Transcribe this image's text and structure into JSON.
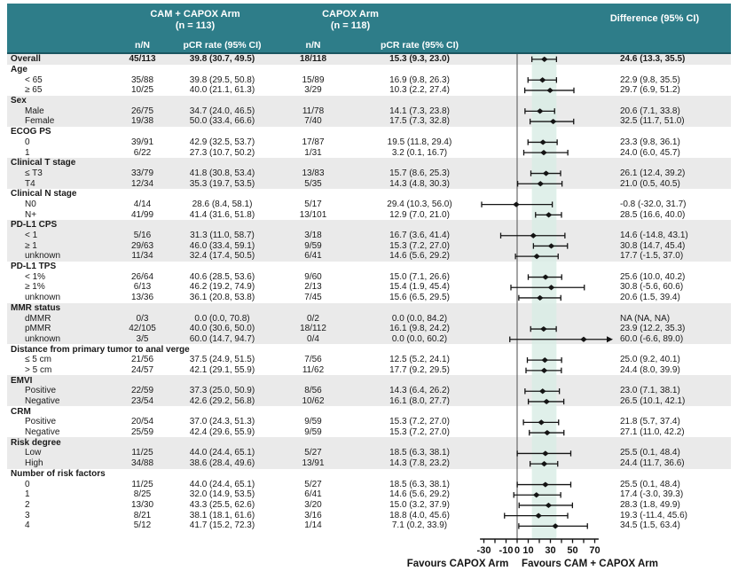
{
  "header": {
    "arm1_title": "CAM + CAPOX Arm",
    "arm1_n": "(n = 113)",
    "arm2_title": "CAPOX Arm",
    "arm2_n": "(n = 118)",
    "diff_title": "Difference (95% CI)",
    "col_nN": "n/N",
    "col_pcr": "pCR rate (95% CI)"
  },
  "colors": {
    "header_bg": "#2e7d89",
    "row_shade": "#eaeaea",
    "band": "#d8ece5",
    "marker": "#141414",
    "reference_line": "#6a6a6a"
  },
  "chart_data": {
    "type": "scatter",
    "subtype": "forest-plot",
    "xlim": [
      -33,
      73
    ],
    "reference_line": 0,
    "shaded_band": [
      13.3,
      35.5
    ],
    "x_ticks": [
      -30,
      -20,
      -10,
      0,
      10,
      20,
      30,
      40,
      50,
      60,
      70
    ],
    "x_tick_labels": [
      {
        "v": -30,
        "label": "-30"
      },
      {
        "v": -10,
        "label": "-10"
      },
      {
        "v": 0,
        "label": "0"
      },
      {
        "v": 10,
        "label": "10"
      },
      {
        "v": 30,
        "label": "30"
      },
      {
        "v": 50,
        "label": "50"
      },
      {
        "v": 70,
        "label": "70"
      }
    ],
    "favours_left": "Favours CAPOX Arm",
    "favours_right": "Favours CAM + CAPOX Arm",
    "rows": [
      {
        "label": "Overall",
        "type": "overall",
        "shaded": true,
        "cam_nN": "45/113",
        "cam_pcr": "39.8 (30.7, 49.5)",
        "cap_nN": "18/118",
        "cap_pcr": "15.3 (9.3, 23.0)",
        "diff": "24.6 (13.3, 35.5)",
        "est": 24.6,
        "lo": 13.3,
        "hi": 35.5
      },
      {
        "label": "Age",
        "type": "group",
        "shaded": false
      },
      {
        "label": "< 65",
        "type": "item",
        "shaded": false,
        "cam_nN": "35/88",
        "cam_pcr": "39.8 (29.5, 50.8)",
        "cap_nN": "15/89",
        "cap_pcr": "16.9 (9.8, 26.3)",
        "diff": "22.9 (9.8, 35.5)",
        "est": 22.9,
        "lo": 9.8,
        "hi": 35.5
      },
      {
        "label": "≥ 65",
        "type": "item",
        "shaded": false,
        "cam_nN": "10/25",
        "cam_pcr": "40.0 (21.1, 61.3)",
        "cap_nN": "3/29",
        "cap_pcr": "10.3 (2.2, 27.4)",
        "diff": "29.7 (6.9, 51.2)",
        "est": 29.7,
        "lo": 6.9,
        "hi": 51.2
      },
      {
        "label": "Sex",
        "type": "group",
        "shaded": true
      },
      {
        "label": "Male",
        "type": "item",
        "shaded": true,
        "cam_nN": "26/75",
        "cam_pcr": "34.7 (24.0, 46.5)",
        "cap_nN": "11/78",
        "cap_pcr": "14.1 (7.3, 23.8)",
        "diff": "20.6 (7.1, 33.8)",
        "est": 20.6,
        "lo": 7.1,
        "hi": 33.8
      },
      {
        "label": "Female",
        "type": "item",
        "shaded": true,
        "cam_nN": "19/38",
        "cam_pcr": "50.0 (33.4, 66.6)",
        "cap_nN": "7/40",
        "cap_pcr": "17.5 (7.3, 32.8)",
        "diff": "32.5 (11.7, 51.0)",
        "est": 32.5,
        "lo": 11.7,
        "hi": 51.0
      },
      {
        "label": "ECOG PS",
        "type": "group",
        "shaded": false
      },
      {
        "label": "0",
        "type": "item",
        "shaded": false,
        "cam_nN": "39/91",
        "cam_pcr": "42.9 (32.5, 53.7)",
        "cap_nN": "17/87",
        "cap_pcr": "19.5 (11.8, 29.4)",
        "diff": "23.3 (9.8, 36.1)",
        "est": 23.3,
        "lo": 9.8,
        "hi": 36.1
      },
      {
        "label": "1",
        "type": "item",
        "shaded": false,
        "cam_nN": "6/22",
        "cam_pcr": "27.3 (10.7, 50.2)",
        "cap_nN": "1/31",
        "cap_pcr": "3.2 (0.1, 16.7)",
        "diff": "24.0 (6.0, 45.7)",
        "est": 24.0,
        "lo": 6.0,
        "hi": 45.7
      },
      {
        "label": "Clinical T stage",
        "type": "group",
        "shaded": true
      },
      {
        "label": "≤ T3",
        "type": "item",
        "shaded": true,
        "cam_nN": "33/79",
        "cam_pcr": "41.8 (30.8, 53.4)",
        "cap_nN": "13/83",
        "cap_pcr": "15.7 (8.6, 25.3)",
        "diff": "26.1 (12.4, 39.2)",
        "est": 26.1,
        "lo": 12.4,
        "hi": 39.2
      },
      {
        "label": "T4",
        "type": "item",
        "shaded": true,
        "cam_nN": "12/34",
        "cam_pcr": "35.3 (19.7, 53.5)",
        "cap_nN": "5/35",
        "cap_pcr": "14.3 (4.8, 30.3)",
        "diff": "21.0 (0.5, 40.5)",
        "est": 21.0,
        "lo": 0.5,
        "hi": 40.5
      },
      {
        "label": "Clinical N stage",
        "type": "group",
        "shaded": false
      },
      {
        "label": "N0",
        "type": "item",
        "shaded": false,
        "cam_nN": "4/14",
        "cam_pcr": "28.6 (8.4, 58.1)",
        "cap_nN": "5/17",
        "cap_pcr": "29.4 (10.3, 56.0)",
        "diff": "-0.8 (-32.0, 31.7)",
        "est": -0.8,
        "lo": -32.0,
        "hi": 31.7
      },
      {
        "label": "N+",
        "type": "item",
        "shaded": false,
        "cam_nN": "41/99",
        "cam_pcr": "41.4 (31.6, 51.8)",
        "cap_nN": "13/101",
        "cap_pcr": "12.9 (7.0, 21.0)",
        "diff": "28.5 (16.6, 40.0)",
        "est": 28.5,
        "lo": 16.6,
        "hi": 40.0
      },
      {
        "label": "PD-L1 CPS",
        "type": "group",
        "shaded": true
      },
      {
        "label": "< 1",
        "type": "item",
        "shaded": true,
        "cam_nN": "5/16",
        "cam_pcr": "31.3 (11.0, 58.7)",
        "cap_nN": "3/18",
        "cap_pcr": "16.7 (3.6, 41.4)",
        "diff": "14.6 (-14.8, 43.1)",
        "est": 14.6,
        "lo": -14.8,
        "hi": 43.1
      },
      {
        "label": "≥ 1",
        "type": "item",
        "shaded": true,
        "cam_nN": "29/63",
        "cam_pcr": "46.0 (33.4, 59.1)",
        "cap_nN": "9/59",
        "cap_pcr": "15.3 (7.2, 27.0)",
        "diff": "30.8 (14.7, 45.4)",
        "est": 30.8,
        "lo": 14.7,
        "hi": 45.4
      },
      {
        "label": "unknown",
        "type": "item",
        "shaded": true,
        "cam_nN": "11/34",
        "cam_pcr": "32.4 (17.4, 50.5)",
        "cap_nN": "6/41",
        "cap_pcr": "14.6 (5.6, 29.2)",
        "diff": "17.7 (-1.5, 37.0)",
        "est": 17.7,
        "lo": -1.5,
        "hi": 37.0
      },
      {
        "label": "PD-L1 TPS",
        "type": "group",
        "shaded": false
      },
      {
        "label": "< 1%",
        "type": "item",
        "shaded": false,
        "cam_nN": "26/64",
        "cam_pcr": "40.6 (28.5, 53.6)",
        "cap_nN": "9/60",
        "cap_pcr": "15.0 (7.1, 26.6)",
        "diff": "25.6 (10.0, 40.2)",
        "est": 25.6,
        "lo": 10.0,
        "hi": 40.2
      },
      {
        "label": "≥ 1%",
        "type": "item",
        "shaded": false,
        "cam_nN": "6/13",
        "cam_pcr": "46.2 (19.2, 74.9)",
        "cap_nN": "2/13",
        "cap_pcr": "15.4 (1.9, 45.4)",
        "diff": "30.8 (-5.6, 60.6)",
        "est": 30.8,
        "lo": -5.6,
        "hi": 60.6
      },
      {
        "label": "unknown",
        "type": "item",
        "shaded": false,
        "cam_nN": "13/36",
        "cam_pcr": "36.1 (20.8, 53.8)",
        "cap_nN": "7/45",
        "cap_pcr": "15.6 (6.5, 29.5)",
        "diff": "20.6 (1.5, 39.4)",
        "est": 20.6,
        "lo": 1.5,
        "hi": 39.4
      },
      {
        "label": "MMR status",
        "type": "group",
        "shaded": true
      },
      {
        "label": "dMMR",
        "type": "item",
        "shaded": true,
        "cam_nN": "0/3",
        "cam_pcr": "0.0 (0.0, 70.8)",
        "cap_nN": "0/2",
        "cap_pcr": "0.0 (0.0, 84.2)",
        "diff": "NA (NA, NA)",
        "na": true
      },
      {
        "label": "pMMR",
        "type": "item",
        "shaded": true,
        "cam_nN": "42/105",
        "cam_pcr": "40.0 (30.6, 50.0)",
        "cap_nN": "18/112",
        "cap_pcr": "16.1 (9.8, 24.2)",
        "diff": "23.9 (12.2, 35.3)",
        "est": 23.9,
        "lo": 12.2,
        "hi": 35.3
      },
      {
        "label": "unknown",
        "type": "item",
        "shaded": true,
        "cam_nN": "3/5",
        "cam_pcr": "60.0 (14.7, 94.7)",
        "cap_nN": "0/4",
        "cap_pcr": "0.0 (0.0, 60.2)",
        "diff": "60.0 (-6.6, 89.0)",
        "est": 60.0,
        "lo": -6.6,
        "hi": 89.0,
        "arrow_hi": true
      },
      {
        "label": "Distance from primary tumor to anal verge",
        "type": "group",
        "shaded": false
      },
      {
        "label": "≤ 5 cm",
        "type": "item",
        "shaded": false,
        "cam_nN": "21/56",
        "cam_pcr": "37.5 (24.9, 51.5)",
        "cap_nN": "7/56",
        "cap_pcr": "12.5 (5.2, 24.1)",
        "diff": "25.0 (9.2, 40.1)",
        "est": 25.0,
        "lo": 9.2,
        "hi": 40.1
      },
      {
        "label": "> 5 cm",
        "type": "item",
        "shaded": false,
        "cam_nN": "24/57",
        "cam_pcr": "42.1 (29.1, 55.9)",
        "cap_nN": "11/62",
        "cap_pcr": "17.7 (9.2, 29.5)",
        "diff": "24.4 (8.0, 39.9)",
        "est": 24.4,
        "lo": 8.0,
        "hi": 39.9
      },
      {
        "label": "EMVI",
        "type": "group",
        "shaded": true
      },
      {
        "label": "Positive",
        "type": "item",
        "shaded": true,
        "cam_nN": "22/59",
        "cam_pcr": "37.3 (25.0, 50.9)",
        "cap_nN": "8/56",
        "cap_pcr": "14.3 (6.4, 26.2)",
        "diff": "23.0 (7.1, 38.1)",
        "est": 23.0,
        "lo": 7.1,
        "hi": 38.1
      },
      {
        "label": "Negative",
        "type": "item",
        "shaded": true,
        "cam_nN": "23/54",
        "cam_pcr": "42.6 (29.2, 56.8)",
        "cap_nN": "10/62",
        "cap_pcr": "16.1 (8.0, 27.7)",
        "diff": "26.5 (10.1, 42.1)",
        "est": 26.5,
        "lo": 10.1,
        "hi": 42.1
      },
      {
        "label": "CRM",
        "type": "group",
        "shaded": false
      },
      {
        "label": "Positive",
        "type": "item",
        "shaded": false,
        "cam_nN": "20/54",
        "cam_pcr": "37.0 (24.3, 51.3)",
        "cap_nN": "9/59",
        "cap_pcr": "15.3 (7.2, 27.0)",
        "diff": "21.8 (5.7, 37.4)",
        "est": 21.8,
        "lo": 5.7,
        "hi": 37.4
      },
      {
        "label": "Negative",
        "type": "item",
        "shaded": false,
        "cam_nN": "25/59",
        "cam_pcr": "42.4 (29.6, 55.9)",
        "cap_nN": "9/59",
        "cap_pcr": "15.3 (7.2, 27.0)",
        "diff": "27.1 (11.0, 42.2)",
        "est": 27.1,
        "lo": 11.0,
        "hi": 42.2
      },
      {
        "label": "Risk degree",
        "type": "group",
        "shaded": true
      },
      {
        "label": "Low",
        "type": "item",
        "shaded": true,
        "cam_nN": "11/25",
        "cam_pcr": "44.0 (24.4, 65.1)",
        "cap_nN": "5/27",
        "cap_pcr": "18.5 (6.3, 38.1)",
        "diff": "25.5 (0.1, 48.4)",
        "est": 25.5,
        "lo": 0.1,
        "hi": 48.4
      },
      {
        "label": "High",
        "type": "item",
        "shaded": true,
        "cam_nN": "34/88",
        "cam_pcr": "38.6 (28.4, 49.6)",
        "cap_nN": "13/91",
        "cap_pcr": "14.3 (7.8, 23.2)",
        "diff": "24.4 (11.7, 36.6)",
        "est": 24.4,
        "lo": 11.7,
        "hi": 36.6
      },
      {
        "label": "Number of risk factors",
        "type": "group",
        "shaded": false
      },
      {
        "label": "0",
        "type": "item",
        "shaded": false,
        "cam_nN": "11/25",
        "cam_pcr": "44.0 (24.4, 65.1)",
        "cap_nN": "5/27",
        "cap_pcr": "18.5 (6.3, 38.1)",
        "diff": "25.5 (0.1, 48.4)",
        "est": 25.5,
        "lo": 0.1,
        "hi": 48.4
      },
      {
        "label": "1",
        "type": "item",
        "shaded": false,
        "cam_nN": "8/25",
        "cam_pcr": "32.0 (14.9, 53.5)",
        "cap_nN": "6/41",
        "cap_pcr": "14.6 (5.6, 29.2)",
        "diff": "17.4 (-3.0, 39.3)",
        "est": 17.4,
        "lo": -3.0,
        "hi": 39.3
      },
      {
        "label": "2",
        "type": "item",
        "shaded": false,
        "cam_nN": "13/30",
        "cam_pcr": "43.3 (25.5, 62.6)",
        "cap_nN": "3/20",
        "cap_pcr": "15.0 (3.2, 37.9)",
        "diff": "28.3 (1.8, 49.9)",
        "est": 28.3,
        "lo": 1.8,
        "hi": 49.9
      },
      {
        "label": "3",
        "type": "item",
        "shaded": false,
        "cam_nN": "8/21",
        "cam_pcr": "38.1 (18.1, 61.6)",
        "cap_nN": "3/16",
        "cap_pcr": "18.8 (4.0, 45.6)",
        "diff": "19.3 (-11.4, 45.6)",
        "est": 19.3,
        "lo": -11.4,
        "hi": 45.6
      },
      {
        "label": "4",
        "type": "item",
        "shaded": false,
        "cam_nN": "5/12",
        "cam_pcr": "41.7 (15.2, 72.3)",
        "cap_nN": "1/14",
        "cap_pcr": "7.1 (0.2, 33.9)",
        "diff": "34.5 (1.5, 63.4)",
        "est": 34.5,
        "lo": 1.5,
        "hi": 63.4
      }
    ]
  }
}
